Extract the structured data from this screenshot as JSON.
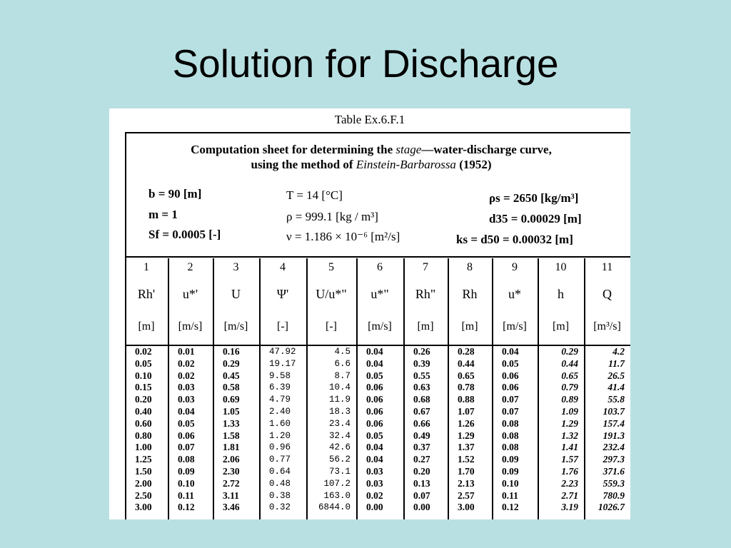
{
  "slide": {
    "title": "Solution for Discharge"
  },
  "table": {
    "label": "Table Ex.6.F.1",
    "caption_a": "Computation sheet for determining the ",
    "caption_stage": "stage",
    "caption_b": "—water-discharge curve,",
    "caption_c": "using the method of ",
    "caption_method": "Einstein-Barbarossa",
    "caption_year": " (1952)",
    "params_left": [
      "b = 90 [m]",
      "m = 1",
      "Sf = 0.0005 [-]"
    ],
    "params_mid": [
      "T = 14 [°C]",
      "ρ = 999.1 [kg / m³]",
      "ν = 1.186 × 10⁻⁶ [m²/s]"
    ],
    "params_right": [
      "ρs = 2650 [kg/m³]",
      "d35 = 0.00029 [m]",
      "ks =  d50 = 0.00032 [m]"
    ],
    "columns": [
      {
        "num": "1",
        "symbol": "Rh'",
        "unit": "[m]"
      },
      {
        "num": "2",
        "symbol": "u*'",
        "unit": "[m/s]"
      },
      {
        "num": "3",
        "symbol": "U",
        "unit": "[m/s]"
      },
      {
        "num": "4",
        "symbol": "Ψ'",
        "unit": "[-]"
      },
      {
        "num": "5",
        "symbol": "U/u*\"",
        "unit": "[-]"
      },
      {
        "num": "6",
        "symbol": "u*\"",
        "unit": "[m/s]"
      },
      {
        "num": "7",
        "symbol": "Rh\"",
        "unit": "[m]"
      },
      {
        "num": "8",
        "symbol": "Rh",
        "unit": "[m]"
      },
      {
        "num": "9",
        "symbol": "u*",
        "unit": "[m/s]"
      },
      {
        "num": "10",
        "symbol": "h",
        "unit": "[m]"
      },
      {
        "num": "11",
        "symbol": "Q",
        "unit": "[m³/s]"
      }
    ],
    "data": {
      "c1": [
        "0.02",
        "0.05",
        "0.10",
        "0.15",
        "0.20",
        "0.40",
        "0.60",
        "0.80",
        "1.00",
        "1.25",
        "1.50",
        "2.00",
        "2.50",
        "3.00"
      ],
      "c2": [
        "0.01",
        "0.02",
        "0.02",
        "0.03",
        "0.03",
        "0.04",
        "0.05",
        "0.06",
        "0.07",
        "0.08",
        "0.09",
        "0.10",
        "0.11",
        "0.12"
      ],
      "c3": [
        "0.16",
        "0.29",
        "0.45",
        "0.58",
        "0.69",
        "1.05",
        "1.33",
        "1.58",
        "1.81",
        "2.06",
        "2.30",
        "2.72",
        "3.11",
        "3.46"
      ],
      "c4": [
        "47.92",
        "19.17",
        "9.58",
        "6.39",
        "4.79",
        "2.40",
        "1.60",
        "1.20",
        "0.96",
        "0.77",
        "0.64",
        "0.48",
        "0.38",
        "0.32"
      ],
      "c5": [
        "4.5",
        "6.6",
        "8.7",
        "10.4",
        "11.9",
        "18.3",
        "23.4",
        "32.4",
        "42.6",
        "56.2",
        "73.1",
        "107.2",
        "163.0",
        "6844.0"
      ],
      "c6": [
        "0.04",
        "0.04",
        "0.05",
        "0.06",
        "0.06",
        "0.06",
        "0.06",
        "0.05",
        "0.04",
        "0.04",
        "0.03",
        "0.03",
        "0.02",
        "0.00"
      ],
      "c7": [
        "0.26",
        "0.39",
        "0.55",
        "0.63",
        "0.68",
        "0.67",
        "0.66",
        "0.49",
        "0.37",
        "0.27",
        "0.20",
        "0.13",
        "0.07",
        "0.00"
      ],
      "c8": [
        "0.28",
        "0.44",
        "0.65",
        "0.78",
        "0.88",
        "1.07",
        "1.26",
        "1.29",
        "1.37",
        "1.52",
        "1.70",
        "2.13",
        "2.57",
        "3.00"
      ],
      "c9": [
        "0.04",
        "0.05",
        "0.06",
        "0.06",
        "0.07",
        "0.07",
        "0.08",
        "0.08",
        "0.08",
        "0.09",
        "0.09",
        "0.10",
        "0.11",
        "0.12"
      ],
      "c10": [
        "0.29",
        "0.44",
        "0.65",
        "0.79",
        "0.89",
        "1.09",
        "1.29",
        "1.32",
        "1.41",
        "1.57",
        "1.76",
        "2.23",
        "2.71",
        "3.19"
      ],
      "c11": [
        "4.2",
        "11.7",
        "26.5",
        "41.4",
        "55.8",
        "103.7",
        "157.4",
        "191.3",
        "232.4",
        "297.3",
        "371.6",
        "559.3",
        "780.9",
        "1026.7"
      ]
    }
  }
}
